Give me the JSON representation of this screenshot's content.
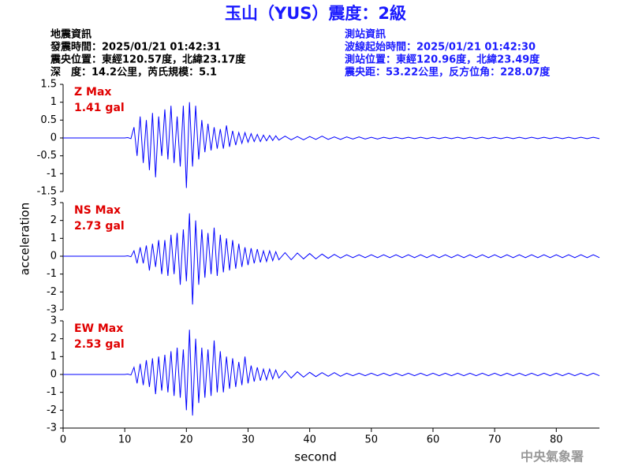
{
  "header": {
    "title": "玉山（YUS）震度：2級",
    "left": [
      "地震資訊",
      "發震時間：2025/01/21 01:42:31",
      "震央位置：東經120.57度，北緯23.17度",
      "深　度：14.2公里，芮氏規模：5.1"
    ],
    "right": [
      "測站資訊",
      "波線起始時間：2025/01/21 01:42:30",
      "測站位置：東經120.96度，北緯23.49度",
      "震央距：53.22公里，反方位角：228.07度"
    ]
  },
  "footer": "中央氣象署",
  "y_axis_label": "acceleration",
  "x_axis": {
    "label": "second",
    "xlim": [
      0,
      87
    ],
    "xticks": [
      0,
      10,
      20,
      30,
      40,
      50,
      60,
      70,
      80
    ],
    "x": [
      0,
      2,
      4,
      6,
      8,
      10,
      10.5,
      11,
      11.5,
      12,
      12.5,
      13,
      13.5,
      14,
      14.5,
      15,
      15.5,
      16,
      16.5,
      17,
      17.5,
      18,
      18.5,
      19,
      19.5,
      20,
      20.5,
      21,
      21.5,
      22,
      22.5,
      23,
      23.5,
      24,
      24.5,
      25,
      25.5,
      26,
      26.5,
      27,
      27.5,
      28,
      28.5,
      29,
      29.5,
      30,
      30.5,
      31,
      31.5,
      32,
      32.5,
      33,
      33.5,
      34,
      34.5,
      35,
      36,
      37,
      38,
      39,
      40,
      41,
      42,
      43,
      44,
      45,
      46,
      47,
      48,
      49,
      50,
      51,
      52,
      53,
      54,
      55,
      56,
      57,
      58,
      59,
      60,
      61,
      62,
      63,
      64,
      65,
      66,
      67,
      68,
      69,
      70,
      71,
      72,
      73,
      74,
      75,
      76,
      77,
      78,
      79,
      80,
      81,
      82,
      83,
      84,
      85,
      86,
      87
    ]
  },
  "chart_data": [
    {
      "type": "line",
      "annotation": "Z Max",
      "annotation_value": "1.41 gal",
      "color": "#0000ff",
      "annotation_color": "#e00000",
      "ylim": [
        -1.5,
        1.5
      ],
      "yticks": [
        -1.5,
        -1,
        -0.5,
        0,
        0.5,
        1,
        1.5
      ],
      "values": [
        0,
        0,
        0,
        0,
        0,
        0,
        0.01,
        -0.02,
        0.3,
        -0.5,
        0.6,
        -0.7,
        0.5,
        -0.9,
        0.7,
        -1.1,
        0.6,
        -0.5,
        0.8,
        -0.6,
        0.9,
        -0.7,
        0.6,
        -0.8,
        0.9,
        -1.4,
        1.0,
        -0.8,
        0.9,
        -0.6,
        0.5,
        -0.4,
        0.4,
        -0.35,
        0.3,
        -0.3,
        0.25,
        -0.3,
        0.35,
        -0.25,
        0.2,
        -0.2,
        0.15,
        -0.15,
        0.15,
        -0.12,
        0.12,
        -0.1,
        0.1,
        -0.1,
        0.08,
        -0.08,
        0.07,
        -0.07,
        0.06,
        -0.06,
        0.05,
        -0.05,
        0.04,
        -0.05,
        0.04,
        -0.04,
        0.05,
        -0.04,
        0.03,
        -0.04,
        0.03,
        -0.03,
        0.03,
        -0.03,
        0.02,
        -0.03,
        0.02,
        -0.02,
        0.02,
        -0.02,
        0.02,
        -0.02,
        0.02,
        -0.02,
        0.02,
        -0.02,
        0.02,
        -0.02,
        0.02,
        -0.02,
        0.02,
        -0.02,
        0.02,
        -0.02,
        0.02,
        -0.02,
        0.02,
        -0.02,
        0.02,
        -0.02,
        0.02,
        -0.02,
        0.02,
        -0.02,
        0.02,
        -0.02,
        0.02,
        -0.02,
        0.02,
        -0.02,
        0.02,
        -0.02
      ]
    },
    {
      "type": "line",
      "annotation": "NS Max",
      "annotation_value": "2.73 gal",
      "color": "#0000ff",
      "annotation_color": "#e00000",
      "ylim": [
        -3,
        3
      ],
      "yticks": [
        -3,
        -2,
        -1,
        0,
        1,
        2,
        3
      ],
      "values": [
        0,
        0,
        0,
        0,
        0,
        0,
        0.02,
        -0.03,
        0.3,
        -0.4,
        0.5,
        -0.4,
        0.6,
        -0.8,
        0.7,
        -0.6,
        0.9,
        -1.0,
        0.9,
        -1.1,
        1.2,
        -1.0,
        1.3,
        -1.6,
        1.5,
        -1.4,
        2.4,
        -2.7,
        2.0,
        -1.6,
        1.5,
        -1.2,
        1.3,
        -1.0,
        1.6,
        -1.1,
        1.2,
        -0.9,
        1.0,
        -0.8,
        0.9,
        -0.7,
        0.7,
        -0.6,
        0.5,
        -0.5,
        0.45,
        -0.4,
        0.4,
        -0.35,
        0.3,
        -0.3,
        0.3,
        -0.25,
        0.25,
        -0.2,
        0.2,
        -0.2,
        0.18,
        -0.15,
        0.15,
        -0.15,
        0.12,
        -0.12,
        0.1,
        -0.1,
        0.08,
        -0.08,
        0.08,
        -0.08,
        0.08,
        -0.08,
        0.08,
        -0.08,
        0.08,
        -0.08,
        0.08,
        -0.08,
        0.08,
        -0.08,
        0.08,
        -0.08,
        0.08,
        -0.08,
        0.08,
        -0.08,
        0.08,
        -0.08,
        0.08,
        -0.08,
        0.08,
        -0.08,
        0.08,
        -0.08,
        0.08,
        -0.08,
        0.08,
        -0.08,
        0.08,
        -0.08,
        0.08,
        -0.08,
        0.08,
        -0.08,
        0.08,
        -0.08,
        0.08,
        -0.08
      ]
    },
    {
      "type": "line",
      "annotation": "EW Max",
      "annotation_value": "2.53 gal",
      "color": "#0000ff",
      "annotation_color": "#e00000",
      "ylim": [
        -3,
        3
      ],
      "yticks": [
        -3,
        -2,
        -1,
        0,
        1,
        2,
        3
      ],
      "values": [
        0,
        0,
        0,
        0,
        0,
        0,
        0.02,
        -0.03,
        0.4,
        -0.5,
        0.6,
        -0.6,
        0.8,
        -0.7,
        0.9,
        -1.1,
        1.0,
        -0.9,
        1.1,
        -1.0,
        1.3,
        -1.2,
        1.5,
        -1.3,
        1.4,
        -2.0,
        2.5,
        -2.3,
        2.0,
        -1.6,
        1.5,
        -1.3,
        1.4,
        -1.2,
        1.9,
        -1.0,
        1.3,
        -1.0,
        1.0,
        -0.8,
        0.9,
        -0.7,
        0.7,
        -0.6,
        1.0,
        -0.5,
        0.5,
        -0.4,
        0.4,
        -0.35,
        0.3,
        -0.3,
        0.3,
        -0.25,
        0.25,
        -0.2,
        0.2,
        -0.2,
        0.15,
        -0.15,
        0.12,
        -0.12,
        0.1,
        -0.1,
        0.1,
        -0.1,
        0.07,
        -0.07,
        0.07,
        -0.07,
        0.07,
        -0.07,
        0.07,
        -0.07,
        0.07,
        -0.07,
        0.07,
        -0.07,
        0.07,
        -0.07,
        0.07,
        -0.07,
        0.07,
        -0.07,
        0.07,
        -0.07,
        0.07,
        -0.07,
        0.07,
        -0.07,
        0.07,
        -0.07,
        0.07,
        -0.07,
        0.07,
        -0.07,
        0.07,
        -0.07,
        0.07,
        -0.07,
        0.07,
        -0.07,
        0.07,
        -0.07,
        0.07,
        -0.07,
        0.07,
        -0.07
      ]
    }
  ]
}
